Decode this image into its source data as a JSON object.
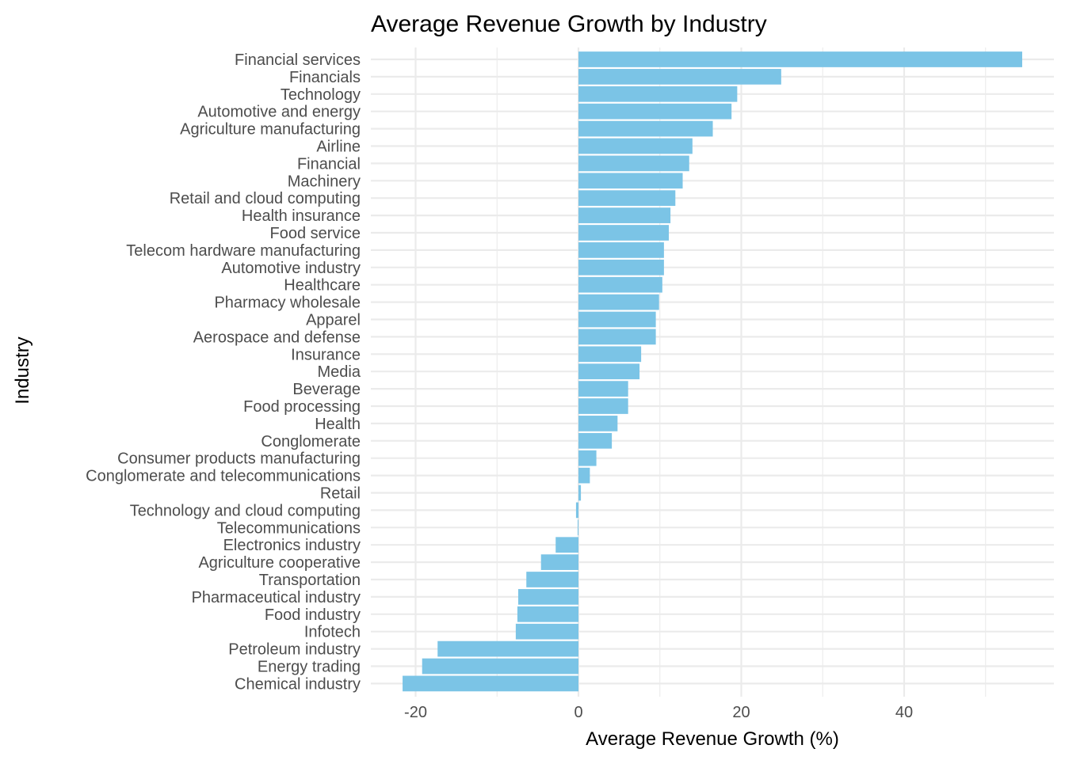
{
  "chart_data": {
    "type": "bar",
    "orientation": "horizontal",
    "title": "Average Revenue Growth by Industry",
    "xlabel": "Average Revenue Growth (%)",
    "ylabel": "Industry",
    "xlim": [
      -25,
      58
    ],
    "xticks": [
      -20,
      0,
      20,
      40
    ],
    "grid": true,
    "bar_color": "#7BC4E6",
    "grid_color": "#EBEBEB",
    "categories": [
      "Financial services",
      "Financials",
      "Technology",
      "Automotive and energy",
      "Agriculture manufacturing",
      "Airline",
      "Financial",
      "Machinery",
      "Retail and cloud computing",
      "Health insurance",
      "Food service",
      "Telecom hardware manufacturing",
      "Automotive industry",
      "Healthcare",
      "Pharmacy wholesale",
      "Apparel",
      "Aerospace and defense",
      "Insurance",
      "Media",
      "Beverage",
      "Food processing",
      "Health",
      "Conglomerate",
      "Consumer products manufacturing",
      "Conglomerate and telecommunications",
      "Retail",
      "Technology and cloud computing",
      "Telecommunications",
      "Electronics industry",
      "Agriculture cooperative",
      "Transportation",
      "Pharmaceutical industry",
      "Food industry",
      "Infotech",
      "Petroleum industry",
      "Energy trading",
      "Chemical industry"
    ],
    "values": [
      54.5,
      24.9,
      19.5,
      18.8,
      16.5,
      14.0,
      13.6,
      12.8,
      11.9,
      11.3,
      11.1,
      10.5,
      10.5,
      10.3,
      9.9,
      9.5,
      9.5,
      7.7,
      7.5,
      6.1,
      6.1,
      4.8,
      4.1,
      2.2,
      1.4,
      0.3,
      -0.3,
      -0.1,
      -2.8,
      -4.6,
      -6.4,
      -7.4,
      -7.5,
      -7.7,
      -17.3,
      -19.2,
      -21.6
    ]
  }
}
